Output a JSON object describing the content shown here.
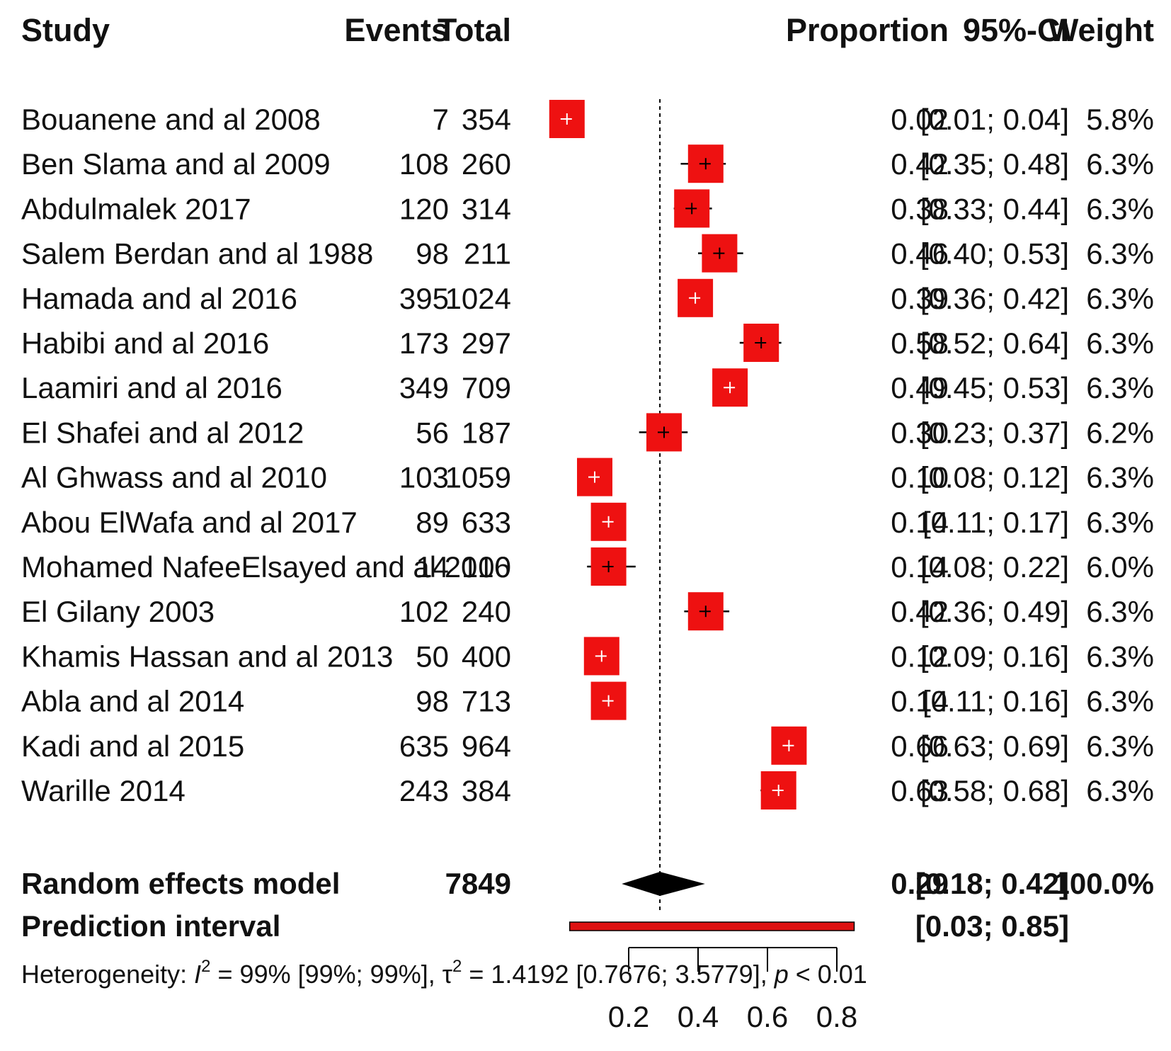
{
  "headers": {
    "study": "Study",
    "events": "Events",
    "total": "Total",
    "proportion": "Proportion",
    "ci": "95%-CI",
    "weight": "Weight"
  },
  "summary": {
    "label": "Random effects model",
    "total": "7849",
    "proportion": "0.29",
    "ci": "[0.18; 0.42]",
    "weight": "100.0%",
    "prediction_label": "Prediction interval",
    "prediction_ci": "[0.03; 0.85]"
  },
  "heterogeneity": {
    "prefix": "Heterogeneity: ",
    "i2_symbol": "I",
    "sup": "2",
    "i2_text": " = 99% [99%; 99%], ",
    "tau_symbol": "τ",
    "tau_text": " = 1.4192 [0.7676; 3.5779], ",
    "p_symbol": "p",
    "p_text": " < 0.01"
  },
  "colors": {
    "box": "#ee1111",
    "prediction": "#dd1111",
    "diamond": "#000000"
  },
  "chart_data": {
    "type": "forest",
    "xlim": [
      0.2,
      0.8
    ],
    "ticks": [
      "0.2",
      "0.4",
      "0.6",
      "0.8"
    ],
    "reference_line": 0.29,
    "studies": [
      {
        "study": "Bouanene and al 2008",
        "events": "7",
        "total": "354",
        "proportion": 0.02,
        "lower": 0.01,
        "upper": 0.04,
        "proportion_text": "0.02",
        "ci_text": "[0.01; 0.04]",
        "weight_text": "5.8%"
      },
      {
        "study": "Ben Slama and al 2009",
        "events": "108",
        "total": "260",
        "proportion": 0.42,
        "lower": 0.35,
        "upper": 0.48,
        "proportion_text": "0.42",
        "ci_text": "[0.35; 0.48]",
        "weight_text": "6.3%"
      },
      {
        "study": "Abdulmalek 2017",
        "events": "120",
        "total": "314",
        "proportion": 0.38,
        "lower": 0.33,
        "upper": 0.44,
        "proportion_text": "0.38",
        "ci_text": "[0.33; 0.44]",
        "weight_text": "6.3%"
      },
      {
        "study": "Salem Berdan and al 1988",
        "events": "98",
        "total": "211",
        "proportion": 0.46,
        "lower": 0.4,
        "upper": 0.53,
        "proportion_text": "0.46",
        "ci_text": "[0.40; 0.53]",
        "weight_text": "6.3%"
      },
      {
        "study": "Hamada and al 2016",
        "events": "395",
        "total": "1024",
        "proportion": 0.39,
        "lower": 0.36,
        "upper": 0.42,
        "proportion_text": "0.39",
        "ci_text": "[0.36; 0.42]",
        "weight_text": "6.3%"
      },
      {
        "study": "Habibi and al 2016",
        "events": "173",
        "total": "297",
        "proportion": 0.58,
        "lower": 0.52,
        "upper": 0.64,
        "proportion_text": "0.58",
        "ci_text": "[0.52; 0.64]",
        "weight_text": "6.3%"
      },
      {
        "study": "Laamiri and al 2016",
        "events": "349",
        "total": "709",
        "proportion": 0.49,
        "lower": 0.45,
        "upper": 0.53,
        "proportion_text": "0.49",
        "ci_text": "[0.45; 0.53]",
        "weight_text": "6.3%"
      },
      {
        "study": "El Shafei and al 2012",
        "events": "56",
        "total": "187",
        "proportion": 0.3,
        "lower": 0.23,
        "upper": 0.37,
        "proportion_text": "0.30",
        "ci_text": "[0.23; 0.37]",
        "weight_text": "6.2%"
      },
      {
        "study": "Al Ghwass and al 2010",
        "events": "103",
        "total": "1059",
        "proportion": 0.1,
        "lower": 0.08,
        "upper": 0.12,
        "proportion_text": "0.10",
        "ci_text": "[0.08; 0.12]",
        "weight_text": "6.3%"
      },
      {
        "study": "Abou ElWafa and al 2017",
        "events": "89",
        "total": "633",
        "proportion": 0.14,
        "lower": 0.11,
        "upper": 0.17,
        "proportion_text": "0.14",
        "ci_text": "[0.11; 0.17]",
        "weight_text": "6.3%"
      },
      {
        "study": "Mohamed NafeeElsayed and al 2016",
        "events": "14",
        "total": "100",
        "proportion": 0.14,
        "lower": 0.08,
        "upper": 0.22,
        "proportion_text": "0.14",
        "ci_text": "[0.08; 0.22]",
        "weight_text": "6.0%"
      },
      {
        "study": "El Gilany 2003",
        "events": "102",
        "total": "240",
        "proportion": 0.42,
        "lower": 0.36,
        "upper": 0.49,
        "proportion_text": "0.42",
        "ci_text": "[0.36; 0.49]",
        "weight_text": "6.3%"
      },
      {
        "study": "Khamis Hassan and al 2013",
        "events": "50",
        "total": "400",
        "proportion": 0.12,
        "lower": 0.09,
        "upper": 0.16,
        "proportion_text": "0.12",
        "ci_text": "[0.09; 0.16]",
        "weight_text": "6.3%"
      },
      {
        "study": "Abla and al 2014",
        "events": "98",
        "total": "713",
        "proportion": 0.14,
        "lower": 0.11,
        "upper": 0.16,
        "proportion_text": "0.14",
        "ci_text": "[0.11; 0.16]",
        "weight_text": "6.3%"
      },
      {
        "study": "Kadi and al 2015",
        "events": "635",
        "total": "964",
        "proportion": 0.66,
        "lower": 0.63,
        "upper": 0.69,
        "proportion_text": "0.66",
        "ci_text": "[0.63; 0.69]",
        "weight_text": "6.3%"
      },
      {
        "study": "Warille 2014",
        "events": "243",
        "total": "384",
        "proportion": 0.63,
        "lower": 0.58,
        "upper": 0.68,
        "proportion_text": "0.63",
        "ci_text": "[0.58; 0.68]",
        "weight_text": "6.3%"
      }
    ],
    "summary": {
      "proportion": 0.29,
      "lower": 0.18,
      "upper": 0.42
    },
    "prediction": {
      "lower": 0.03,
      "upper": 0.85
    }
  }
}
